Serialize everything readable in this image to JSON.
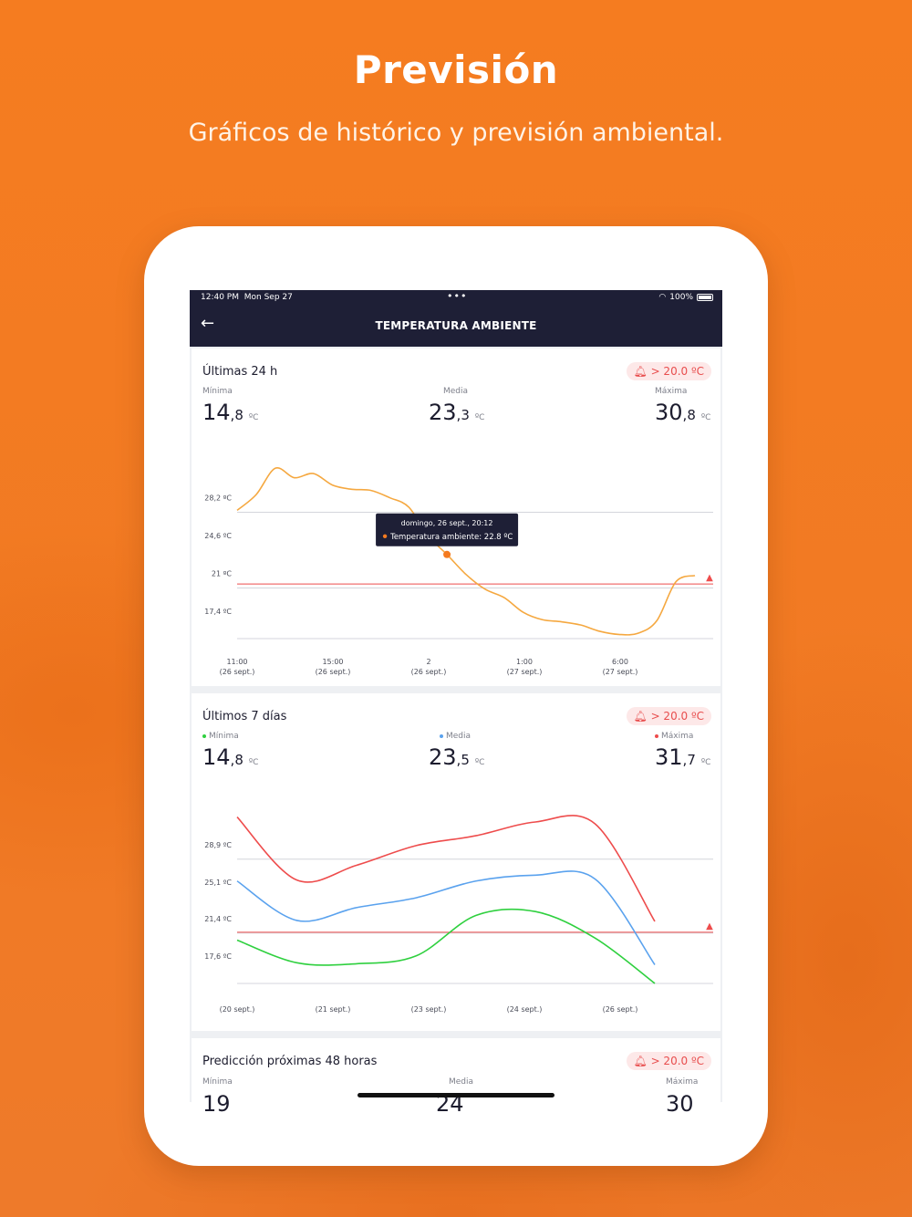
{
  "hero": {
    "title": "Previsión",
    "subtitle": "Gráficos de histórico y previsión ambiental."
  },
  "status_bar": {
    "time": "12:40 PM",
    "date": "Mon Sep 27",
    "dots": "•••",
    "battery": "100%"
  },
  "nav": {
    "back_icon": "arrow-left-icon",
    "title": "TEMPERATURA AMBIENTE"
  },
  "colors": {
    "accent": "#f47a1f",
    "header": "#1e1f36",
    "alert": "#e84d4d",
    "series_24h": "#f5a840",
    "min": "#2fd03f",
    "avg": "#5aa2ee",
    "max": "#ee4c4c"
  },
  "card_24h": {
    "title": "Últimas 24 h",
    "alert": "> 20.0 ºC",
    "min": {
      "label": "Mínima",
      "int": "14",
      "dec": ",8",
      "unit": "ºC"
    },
    "avg": {
      "label": "Media",
      "int": "23",
      "dec": ",3",
      "unit": "ºC"
    },
    "max": {
      "label": "Máxima",
      "int": "30",
      "dec": ",8",
      "unit": "ºC"
    },
    "tooltip": {
      "date": "domingo, 26 sept., 20:12",
      "label": "Temperatura ambiente: 22.8 ºC"
    }
  },
  "card_7d": {
    "title": "Últimos 7 días",
    "alert": "> 20.0 ºC",
    "min": {
      "label": "Mínima",
      "int": "14",
      "dec": ",8",
      "unit": "ºC"
    },
    "avg": {
      "label": "Media",
      "int": "23",
      "dec": ",5",
      "unit": "ºC"
    },
    "max": {
      "label": "Máxima",
      "int": "31",
      "dec": ",7",
      "unit": "ºC"
    }
  },
  "card_48h": {
    "title": "Predicción próximas 48 horas",
    "alert": "> 20.0 ºC",
    "min": {
      "label": "Mínima",
      "int": "19"
    },
    "avg": {
      "label": "Media",
      "int": "24"
    },
    "max": {
      "label": "Máxima",
      "int": "30"
    }
  },
  "chart_data": [
    {
      "type": "line",
      "title": "Últimas 24 h",
      "y_ticks": [
        "28,2 ºC",
        "24,6 ºC",
        "21 ºC",
        "17,4 ºC"
      ],
      "y_tick_values": [
        28.2,
        24.6,
        21,
        17.4
      ],
      "x_ticks": [
        [
          "11:00",
          "(26 sept.)"
        ],
        [
          "15:00",
          "(26 sept.)"
        ],
        [
          "2",
          "(26 sept.)"
        ],
        [
          "1:00",
          "(27 sept.)"
        ],
        [
          "6:00",
          "(27 sept.)"
        ]
      ],
      "threshold": 20.0,
      "ylim": [
        14.8,
        32.5
      ],
      "series": [
        {
          "color": "#f5a840",
          "values": [
            27,
            28.5,
            31,
            30.1,
            30.5,
            29.4,
            29,
            28.9,
            28.2,
            27.3,
            24.6,
            22.8,
            20.9,
            19.5,
            18.7,
            17.3,
            16.6,
            16.4,
            16.1,
            15.5,
            15.2,
            15.3,
            16.5,
            20.2,
            20.8
          ]
        }
      ],
      "highlight_index": 11,
      "grid": true
    },
    {
      "type": "line",
      "title": "Últimos 7 días",
      "y_ticks": [
        "28,9 ºC",
        "25,1 ºC",
        "21,4 ºC",
        "17,6 ºC"
      ],
      "y_tick_values": [
        28.9,
        25.1,
        21.4,
        17.6
      ],
      "x_ticks": [
        "(20 sept.)",
        "(21 sept.)",
        "(23 sept.)",
        "(24 sept.)",
        "(26 sept.)"
      ],
      "threshold": 20.0,
      "ylim": [
        14.8,
        33.7
      ],
      "series": [
        {
          "name": "Máxima",
          "color": "#ee4c4c",
          "values": [
            31.7,
            25.3,
            26.8,
            28.8,
            29.8,
            31.2,
            31.0,
            21.1
          ]
        },
        {
          "name": "Media",
          "color": "#5aa2ee",
          "values": [
            25.2,
            21.2,
            22.5,
            23.5,
            25.2,
            25.8,
            25.4,
            16.7
          ]
        },
        {
          "name": "Mínima",
          "color": "#2fd03f",
          "values": [
            19.2,
            16.9,
            16.8,
            17.6,
            21.7,
            22.1,
            19.4,
            14.8
          ]
        }
      ],
      "grid": true
    }
  ]
}
